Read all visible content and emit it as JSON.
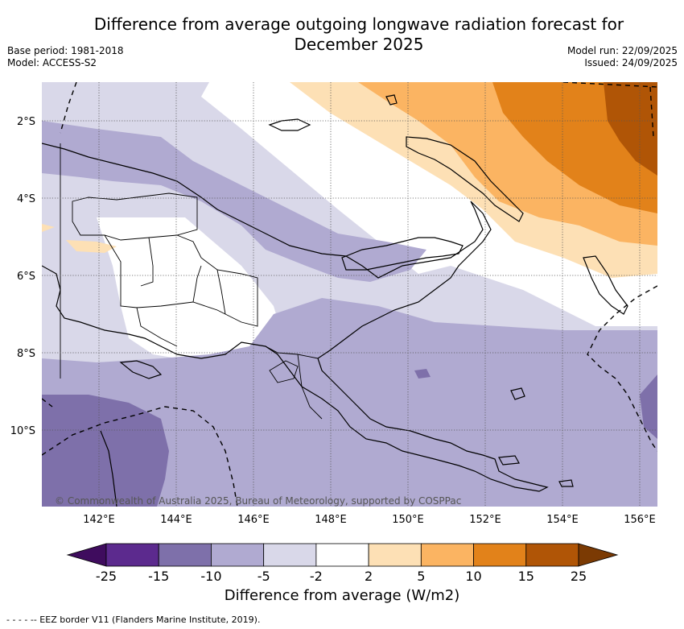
{
  "title_line1": "Difference from average outgoing longwave radiation forecast for",
  "title_line2": "December 2025",
  "base_period": "Base period: 1981-2018",
  "model": "Model: ACCESS-S2",
  "model_run": "Model run: 22/09/2025",
  "issued": "Issued: 24/09/2025",
  "copyright": "© Commonwealth of Australia 2025, Bureau of Meteorology, supported by COSPPac",
  "lat_labels": [
    "2°S",
    "4°S",
    "6°S",
    "8°S",
    "10°S"
  ],
  "lon_labels": [
    "142°E",
    "144°E",
    "146°E",
    "148°E",
    "150°E",
    "152°E",
    "154°E",
    "156°E"
  ],
  "colorbar": {
    "ticks": [
      "-25",
      "-15",
      "-10",
      "-5",
      "-2",
      "2",
      "5",
      "10",
      "15",
      "25"
    ],
    "colors": [
      "#3f0c5e",
      "#5c2a8e",
      "#7e70aa",
      "#b0aad1",
      "#d9d8e9",
      "#ffffff",
      "#fde0b5",
      "#fbb462",
      "#e2821a",
      "#b05506",
      "#7b3a03"
    ],
    "label": "Difference from average (W/m2)"
  },
  "legend_eez": "- -  - -  -- EEZ border V11 (Flanders Marine Institute, 2019)."
}
